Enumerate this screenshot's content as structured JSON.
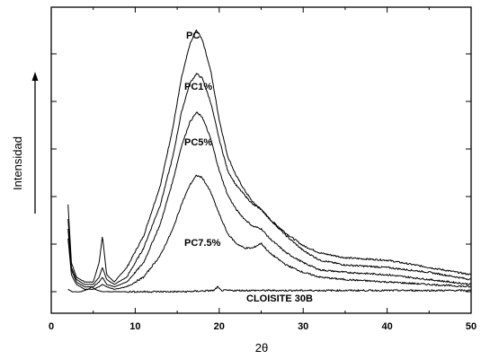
{
  "chart_data": {
    "type": "line",
    "xlabel": "2θ",
    "ylabel": "Intensidad",
    "xlim": [
      0,
      50
    ],
    "x_ticks": [
      0,
      10,
      20,
      30,
      40,
      50
    ],
    "ylim": [
      0,
      1
    ],
    "y_tick_count": 5,
    "y_tick_labels_shown": false,
    "grid": false,
    "legend": "none",
    "annotations": [
      "PC",
      "PC1%",
      "PC5%",
      "PC7.5%",
      "CLOISITE 30B"
    ],
    "series": [
      {
        "name": "PC",
        "x": [
          2,
          2.4,
          3,
          4,
          5,
          5.7,
          6.1,
          6.6,
          7.5,
          9,
          11,
          13,
          14.5,
          15.5,
          16.5,
          17.3,
          18,
          19,
          20,
          21,
          22,
          23,
          24,
          25,
          26,
          28,
          30,
          32,
          35,
          40,
          45,
          50
        ],
        "y": [
          0.36,
          0.12,
          0.06,
          0.04,
          0.04,
          0.12,
          0.23,
          0.07,
          0.04,
          0.1,
          0.23,
          0.44,
          0.68,
          0.88,
          1.02,
          1.08,
          1.04,
          0.91,
          0.71,
          0.56,
          0.48,
          0.42,
          0.37,
          0.34,
          0.3,
          0.24,
          0.19,
          0.16,
          0.14,
          0.13,
          0.1,
          0.07
        ]
      },
      {
        "name": "PC1%",
        "x": [
          2,
          2.4,
          3,
          4,
          5,
          5.7,
          6.1,
          6.6,
          7.5,
          9,
          11,
          13,
          14.5,
          15.5,
          16.5,
          17.3,
          18,
          19,
          20,
          21,
          22,
          23,
          24,
          25,
          26,
          28,
          30,
          32,
          35,
          40,
          45,
          50
        ],
        "y": [
          0.3,
          0.1,
          0.05,
          0.03,
          0.03,
          0.06,
          0.1,
          0.05,
          0.03,
          0.06,
          0.18,
          0.36,
          0.56,
          0.74,
          0.86,
          0.9,
          0.88,
          0.78,
          0.63,
          0.5,
          0.44,
          0.4,
          0.36,
          0.34,
          0.3,
          0.23,
          0.17,
          0.13,
          0.11,
          0.1,
          0.08,
          0.05
        ]
      },
      {
        "name": "PC5%",
        "x": [
          2,
          2.4,
          3,
          4,
          5,
          5.7,
          6.1,
          6.6,
          7.5,
          9,
          11,
          13,
          14.5,
          15.5,
          16.5,
          17.3,
          18,
          19,
          20,
          21,
          22,
          23,
          24,
          25,
          26,
          28,
          30,
          32,
          35,
          40,
          45,
          50
        ],
        "y": [
          0.26,
          0.09,
          0.04,
          0.02,
          0.02,
          0.04,
          0.06,
          0.03,
          0.02,
          0.04,
          0.12,
          0.28,
          0.46,
          0.6,
          0.7,
          0.74,
          0.72,
          0.63,
          0.5,
          0.4,
          0.34,
          0.3,
          0.27,
          0.26,
          0.22,
          0.16,
          0.12,
          0.09,
          0.08,
          0.07,
          0.05,
          0.03
        ]
      },
      {
        "name": "PC7.5%",
        "x": [
          2,
          2.4,
          3,
          4,
          5,
          5.7,
          6.1,
          6.6,
          7.5,
          9,
          11,
          13,
          14.5,
          15.5,
          16.5,
          17.3,
          18,
          19,
          20,
          21,
          22,
          23,
          24,
          25,
          26,
          28,
          30,
          32,
          35,
          40,
          45,
          50
        ],
        "y": [
          0.22,
          0.07,
          0.03,
          0.01,
          0.01,
          0.02,
          0.03,
          0.02,
          0.01,
          0.02,
          0.06,
          0.15,
          0.26,
          0.36,
          0.44,
          0.48,
          0.47,
          0.41,
          0.32,
          0.24,
          0.2,
          0.18,
          0.18,
          0.2,
          0.16,
          0.11,
          0.08,
          0.06,
          0.05,
          0.04,
          0.03,
          0.02
        ]
      },
      {
        "name": "CLOISITE 30B",
        "x": [
          2,
          2.5,
          3.5,
          4.4,
          4.8,
          5.2,
          6,
          8,
          12,
          16,
          19.4,
          19.8,
          20.2,
          24,
          30,
          40,
          50
        ],
        "y": [
          0.01,
          0,
          0,
          0.01,
          0.02,
          0.01,
          0,
          0,
          0,
          0,
          0.005,
          0.02,
          0.005,
          0.005,
          0.005,
          0.005,
          0.005
        ]
      }
    ]
  }
}
